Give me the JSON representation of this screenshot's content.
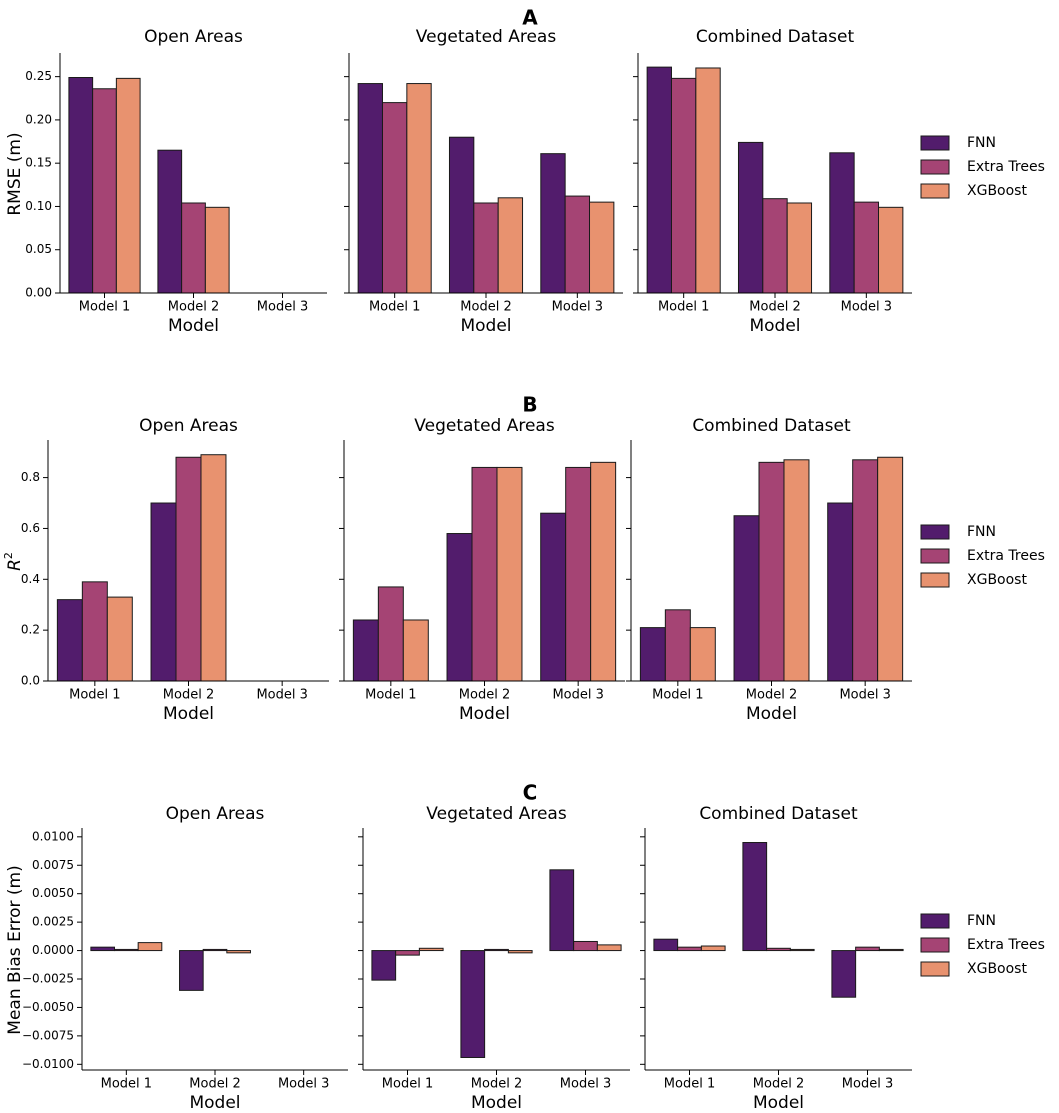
{
  "colors": {
    "FNN": "#521c6c",
    "Extra Trees": "#a54474",
    "XGBoost": "#e8926f",
    "edge": "#1a1a1a"
  },
  "chart_data": [
    {
      "type": "bar",
      "row_label": "A",
      "ylabel": "RMSE (m)",
      "xlabel": "Model",
      "categories": [
        "Model 1",
        "Model 2",
        "Model 3"
      ],
      "series_names": [
        "FNN",
        "Extra Trees",
        "XGBoost"
      ],
      "ylim": [
        0,
        0.275
      ],
      "yticks": [
        0,
        0.05,
        0.1,
        0.15,
        0.2,
        0.25
      ],
      "ytick_labels": [
        "0.00",
        "0.05",
        "0.10",
        "0.15",
        "0.20",
        "0.25"
      ],
      "panels": [
        {
          "title": "Open Areas",
          "series": [
            {
              "name": "FNN",
              "values": [
                0.249,
                0.165,
                null
              ]
            },
            {
              "name": "Extra Trees",
              "values": [
                0.236,
                0.104,
                null
              ]
            },
            {
              "name": "XGBoost",
              "values": [
                0.248,
                0.099,
                null
              ]
            }
          ]
        },
        {
          "title": "Vegetated Areas",
          "series": [
            {
              "name": "FNN",
              "values": [
                0.242,
                0.18,
                0.161
              ]
            },
            {
              "name": "Extra Trees",
              "values": [
                0.22,
                0.104,
                0.112
              ]
            },
            {
              "name": "XGBoost",
              "values": [
                0.242,
                0.11,
                0.105
              ]
            }
          ]
        },
        {
          "title": "Combined Dataset",
          "series": [
            {
              "name": "FNN",
              "values": [
                0.261,
                0.174,
                0.162
              ]
            },
            {
              "name": "Extra Trees",
              "values": [
                0.248,
                0.109,
                0.105
              ]
            },
            {
              "name": "XGBoost",
              "values": [
                0.26,
                0.104,
                0.099
              ]
            }
          ]
        }
      ]
    },
    {
      "type": "bar",
      "row_label": "B",
      "ylabel": "R",
      "ylabel_sup": "2",
      "xlabel": "Model",
      "categories": [
        "Model 1",
        "Model 2",
        "Model 3"
      ],
      "series_names": [
        "FNN",
        "Extra Trees",
        "XGBoost"
      ],
      "ylim": [
        0,
        0.94
      ],
      "yticks": [
        0,
        0.2,
        0.4,
        0.6,
        0.8
      ],
      "ytick_labels": [
        "0.0",
        "0.2",
        "0.4",
        "0.6",
        "0.8"
      ],
      "panels": [
        {
          "title": "Open Areas",
          "series": [
            {
              "name": "FNN",
              "values": [
                0.32,
                0.7,
                null
              ]
            },
            {
              "name": "Extra Trees",
              "values": [
                0.39,
                0.88,
                null
              ]
            },
            {
              "name": "XGBoost",
              "values": [
                0.33,
                0.89,
                null
              ]
            }
          ]
        },
        {
          "title": "Vegetated Areas",
          "series": [
            {
              "name": "FNN",
              "values": [
                0.24,
                0.58,
                0.66
              ]
            },
            {
              "name": "Extra Trees",
              "values": [
                0.37,
                0.84,
                0.84
              ]
            },
            {
              "name": "XGBoost",
              "values": [
                0.24,
                0.84,
                0.86
              ]
            }
          ]
        },
        {
          "title": "Combined Dataset",
          "series": [
            {
              "name": "FNN",
              "values": [
                0.21,
                0.65,
                0.7
              ]
            },
            {
              "name": "Extra Trees",
              "values": [
                0.28,
                0.86,
                0.87
              ]
            },
            {
              "name": "XGBoost",
              "values": [
                0.21,
                0.87,
                0.88
              ]
            }
          ]
        }
      ]
    },
    {
      "type": "bar",
      "row_label": "C",
      "ylabel": "Mean Bias Error (m)",
      "xlabel": "Model",
      "categories": [
        "Model 1",
        "Model 2",
        "Model 3"
      ],
      "series_names": [
        "FNN",
        "Extra Trees",
        "XGBoost"
      ],
      "ylim": [
        -0.0105,
        0.0106
      ],
      "yticks": [
        -0.01,
        -0.0075,
        -0.005,
        -0.0025,
        0,
        0.0025,
        0.005,
        0.0075,
        0.01
      ],
      "ytick_labels": [
        "−0.0100",
        "−0.0075",
        "−0.0050",
        "−0.0025",
        "0.0000",
        "0.0025",
        "0.0050",
        "0.0075",
        "0.0100"
      ],
      "panels": [
        {
          "title": "Open Areas",
          "series": [
            {
              "name": "FNN",
              "values": [
                0.0003,
                -0.0035,
                null
              ]
            },
            {
              "name": "Extra Trees",
              "values": [
                0.0001,
                0.0001,
                null
              ]
            },
            {
              "name": "XGBoost",
              "values": [
                0.0007,
                -0.0002,
                null
              ]
            }
          ]
        },
        {
          "title": "Vegetated Areas",
          "series": [
            {
              "name": "FNN",
              "values": [
                -0.0026,
                -0.0094,
                0.0071
              ]
            },
            {
              "name": "Extra Trees",
              "values": [
                -0.0004,
                0.0001,
                0.0008
              ]
            },
            {
              "name": "XGBoost",
              "values": [
                0.0002,
                -0.0002,
                0.0005
              ]
            }
          ]
        },
        {
          "title": "Combined Dataset",
          "series": [
            {
              "name": "FNN",
              "values": [
                0.001,
                0.0095,
                -0.0041
              ]
            },
            {
              "name": "Extra Trees",
              "values": [
                0.0003,
                0.0002,
                0.0003
              ]
            },
            {
              "name": "XGBoost",
              "values": [
                0.0004,
                0.0001,
                0.0001
              ]
            }
          ]
        }
      ]
    }
  ]
}
